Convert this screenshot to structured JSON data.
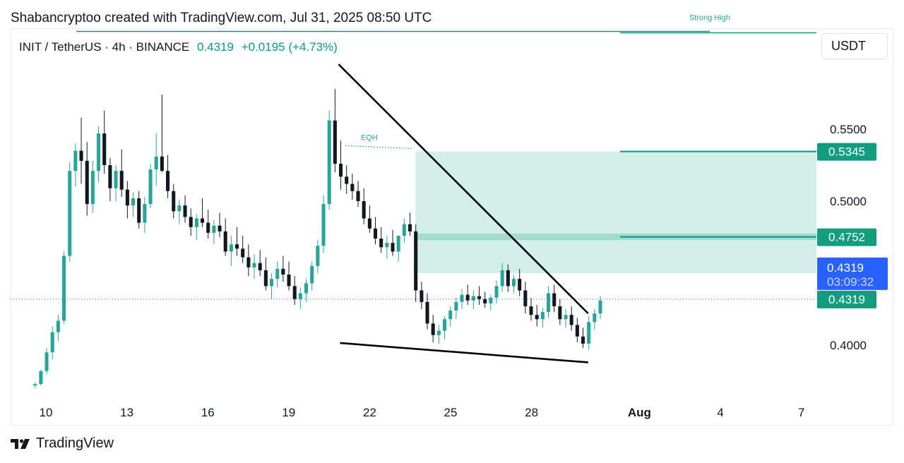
{
  "credit": "Shabancryptoo created with TradingView.com, Jul 31, 2025 08:50 UTC",
  "legend": {
    "symbol": "INIT / TetherUS · 4h · BINANCE",
    "price": "0.4319",
    "change": "+0.0195 (+4.73%)"
  },
  "currency_button": "USDT",
  "footer_brand": "TradingView",
  "colors": {
    "up": "#26a69a",
    "down": "#131722",
    "zone": "#b2e3d8",
    "line_label_bg": "#119d7e",
    "price_label_bg": "#2962ff"
  },
  "chart_data": {
    "type": "candlestick",
    "instrument": "INIT / TetherUS",
    "timeframe": "4h",
    "exchange": "BINANCE",
    "y_axis": {
      "ticks": [
        0.55,
        0.5,
        0.45,
        0.4
      ],
      "tick_labels": [
        "0.5500",
        "0.5000",
        "0.4000"
      ]
    },
    "ylim": [
      0.365,
      0.6185
    ],
    "x_axis": {
      "ticks": [
        {
          "label": "10",
          "day": 10,
          "bold": false
        },
        {
          "label": "13",
          "day": 13,
          "bold": false
        },
        {
          "label": "16",
          "day": 16,
          "bold": false
        },
        {
          "label": "19",
          "day": 19,
          "bold": false
        },
        {
          "label": "22",
          "day": 22,
          "bold": false
        },
        {
          "label": "25",
          "day": 25,
          "bold": false
        },
        {
          "label": "28",
          "day": 28,
          "bold": false
        },
        {
          "label": "Aug",
          "day": 32,
          "bold": true
        },
        {
          "label": "4",
          "day": 35,
          "bold": false
        },
        {
          "label": "7",
          "day": 38,
          "bold": false
        }
      ]
    },
    "candles_4h_approx": [
      [
        0.372,
        0.374,
        0.37,
        0.373
      ],
      [
        0.373,
        0.383,
        0.372,
        0.382
      ],
      [
        0.382,
        0.398,
        0.38,
        0.395
      ],
      [
        0.395,
        0.413,
        0.39,
        0.409
      ],
      [
        0.409,
        0.421,
        0.403,
        0.417
      ],
      [
        0.417,
        0.465,
        0.415,
        0.462
      ],
      [
        0.462,
        0.527,
        0.458,
        0.521
      ],
      [
        0.521,
        0.54,
        0.51,
        0.535
      ],
      [
        0.535,
        0.558,
        0.512,
        0.528
      ],
      [
        0.528,
        0.541,
        0.49,
        0.498
      ],
      [
        0.498,
        0.528,
        0.492,
        0.521
      ],
      [
        0.521,
        0.552,
        0.513,
        0.547
      ],
      [
        0.547,
        0.563,
        0.519,
        0.525
      ],
      [
        0.525,
        0.53,
        0.5,
        0.509
      ],
      [
        0.509,
        0.525,
        0.5,
        0.521
      ],
      [
        0.521,
        0.536,
        0.503,
        0.508
      ],
      [
        0.508,
        0.514,
        0.488,
        0.497
      ],
      [
        0.497,
        0.506,
        0.489,
        0.502
      ],
      [
        0.502,
        0.507,
        0.481,
        0.485
      ],
      [
        0.485,
        0.503,
        0.478,
        0.498
      ],
      [
        0.498,
        0.526,
        0.495,
        0.522
      ],
      [
        0.522,
        0.547,
        0.511,
        0.531
      ],
      [
        0.531,
        0.574,
        0.52,
        0.521
      ],
      [
        0.521,
        0.532,
        0.502,
        0.507
      ],
      [
        0.507,
        0.512,
        0.488,
        0.493
      ],
      [
        0.493,
        0.501,
        0.484,
        0.497
      ],
      [
        0.497,
        0.504,
        0.485,
        0.489
      ],
      [
        0.489,
        0.495,
        0.476,
        0.482
      ],
      [
        0.482,
        0.491,
        0.473,
        0.488
      ],
      [
        0.488,
        0.502,
        0.482,
        0.485
      ],
      [
        0.485,
        0.494,
        0.474,
        0.478
      ],
      [
        0.478,
        0.487,
        0.47,
        0.483
      ],
      [
        0.483,
        0.492,
        0.475,
        0.479
      ],
      [
        0.479,
        0.488,
        0.462,
        0.465
      ],
      [
        0.465,
        0.476,
        0.455,
        0.47
      ],
      [
        0.47,
        0.482,
        0.462,
        0.467
      ],
      [
        0.467,
        0.476,
        0.457,
        0.461
      ],
      [
        0.461,
        0.47,
        0.448,
        0.454
      ],
      [
        0.454,
        0.463,
        0.446,
        0.457
      ],
      [
        0.457,
        0.466,
        0.448,
        0.452
      ],
      [
        0.452,
        0.461,
        0.438,
        0.441
      ],
      [
        0.441,
        0.45,
        0.432,
        0.446
      ],
      [
        0.446,
        0.458,
        0.44,
        0.453
      ],
      [
        0.453,
        0.462,
        0.444,
        0.449
      ],
      [
        0.449,
        0.458,
        0.438,
        0.441
      ],
      [
        0.441,
        0.448,
        0.428,
        0.432
      ],
      [
        0.432,
        0.44,
        0.425,
        0.436
      ],
      [
        0.436,
        0.446,
        0.43,
        0.443
      ],
      [
        0.443,
        0.458,
        0.438,
        0.455
      ],
      [
        0.455,
        0.473,
        0.45,
        0.469
      ],
      [
        0.469,
        0.504,
        0.464,
        0.498
      ],
      [
        0.498,
        0.563,
        0.494,
        0.556
      ],
      [
        0.556,
        0.578,
        0.52,
        0.526
      ],
      [
        0.526,
        0.542,
        0.508,
        0.517
      ],
      [
        0.517,
        0.525,
        0.505,
        0.512
      ],
      [
        0.512,
        0.519,
        0.501,
        0.507
      ],
      [
        0.507,
        0.514,
        0.496,
        0.5
      ],
      [
        0.5,
        0.509,
        0.484,
        0.488
      ],
      [
        0.488,
        0.497,
        0.478,
        0.481
      ],
      [
        0.481,
        0.489,
        0.47,
        0.474
      ],
      [
        0.474,
        0.482,
        0.464,
        0.468
      ],
      [
        0.468,
        0.476,
        0.46,
        0.471
      ],
      [
        0.471,
        0.48,
        0.462,
        0.465
      ],
      [
        0.465,
        0.472,
        0.458,
        0.476
      ],
      [
        0.476,
        0.488,
        0.471,
        0.484
      ],
      [
        0.484,
        0.492,
        0.476,
        0.479
      ],
      [
        0.479,
        0.484,
        0.43,
        0.438
      ],
      [
        0.438,
        0.444,
        0.425,
        0.43
      ],
      [
        0.43,
        0.436,
        0.411,
        0.415
      ],
      [
        0.415,
        0.421,
        0.402,
        0.407
      ],
      [
        0.407,
        0.414,
        0.401,
        0.41
      ],
      [
        0.41,
        0.42,
        0.404,
        0.418
      ],
      [
        0.418,
        0.427,
        0.413,
        0.424
      ],
      [
        0.424,
        0.433,
        0.418,
        0.43
      ],
      [
        0.43,
        0.439,
        0.425,
        0.435
      ],
      [
        0.435,
        0.442,
        0.428,
        0.431
      ],
      [
        0.431,
        0.438,
        0.425,
        0.434
      ],
      [
        0.434,
        0.441,
        0.428,
        0.432
      ],
      [
        0.432,
        0.437,
        0.426,
        0.429
      ],
      [
        0.429,
        0.435,
        0.424,
        0.433
      ],
      [
        0.433,
        0.445,
        0.429,
        0.441
      ],
      [
        0.441,
        0.457,
        0.437,
        0.452
      ],
      [
        0.452,
        0.456,
        0.437,
        0.441
      ],
      [
        0.441,
        0.449,
        0.436,
        0.446
      ],
      [
        0.446,
        0.453,
        0.434,
        0.438
      ],
      [
        0.438,
        0.444,
        0.422,
        0.427
      ],
      [
        0.427,
        0.433,
        0.417,
        0.421
      ],
      [
        0.421,
        0.428,
        0.413,
        0.418
      ],
      [
        0.418,
        0.426,
        0.412,
        0.423
      ],
      [
        0.423,
        0.441,
        0.419,
        0.436
      ],
      [
        0.436,
        0.442,
        0.423,
        0.427
      ],
      [
        0.427,
        0.432,
        0.414,
        0.418
      ],
      [
        0.418,
        0.425,
        0.412,
        0.421
      ],
      [
        0.421,
        0.427,
        0.41,
        0.414
      ],
      [
        0.414,
        0.419,
        0.402,
        0.406
      ],
      [
        0.406,
        0.412,
        0.398,
        0.401
      ],
      [
        0.401,
        0.42,
        0.397,
        0.416
      ],
      [
        0.416,
        0.425,
        0.411,
        0.422
      ],
      [
        0.422,
        0.434,
        0.418,
        0.431
      ]
    ],
    "drawings": {
      "descending_trendline": {
        "from": {
          "day": 20.85,
          "price": 0.595
        },
        "to": {
          "day": 30.1,
          "price": 0.422
        }
      },
      "support_trendline": {
        "from": {
          "day": 20.9,
          "price": 0.4015
        },
        "to": {
          "day": 30.1,
          "price": 0.388
        }
      },
      "eqh": {
        "label": "EQH",
        "from_day": 21.1,
        "to_day": 23.6,
        "price": 0.5385
      },
      "zone": {
        "from_day": 23.7,
        "to_day": 32.0,
        "top": 0.5345,
        "bottom": 0.45,
        "band_top": 0.4775,
        "band_bottom": 0.473
      },
      "strong_high": {
        "label": "Strong High",
        "price": 0.6179
      },
      "level_lines": [
        {
          "price": 0.5345,
          "label": "0.5345"
        },
        {
          "price": 0.4752,
          "label": "0.4752"
        }
      ],
      "current_price_line": {
        "price": 0.4319,
        "label": "0.4319",
        "countdown": "03:09:32"
      }
    }
  }
}
